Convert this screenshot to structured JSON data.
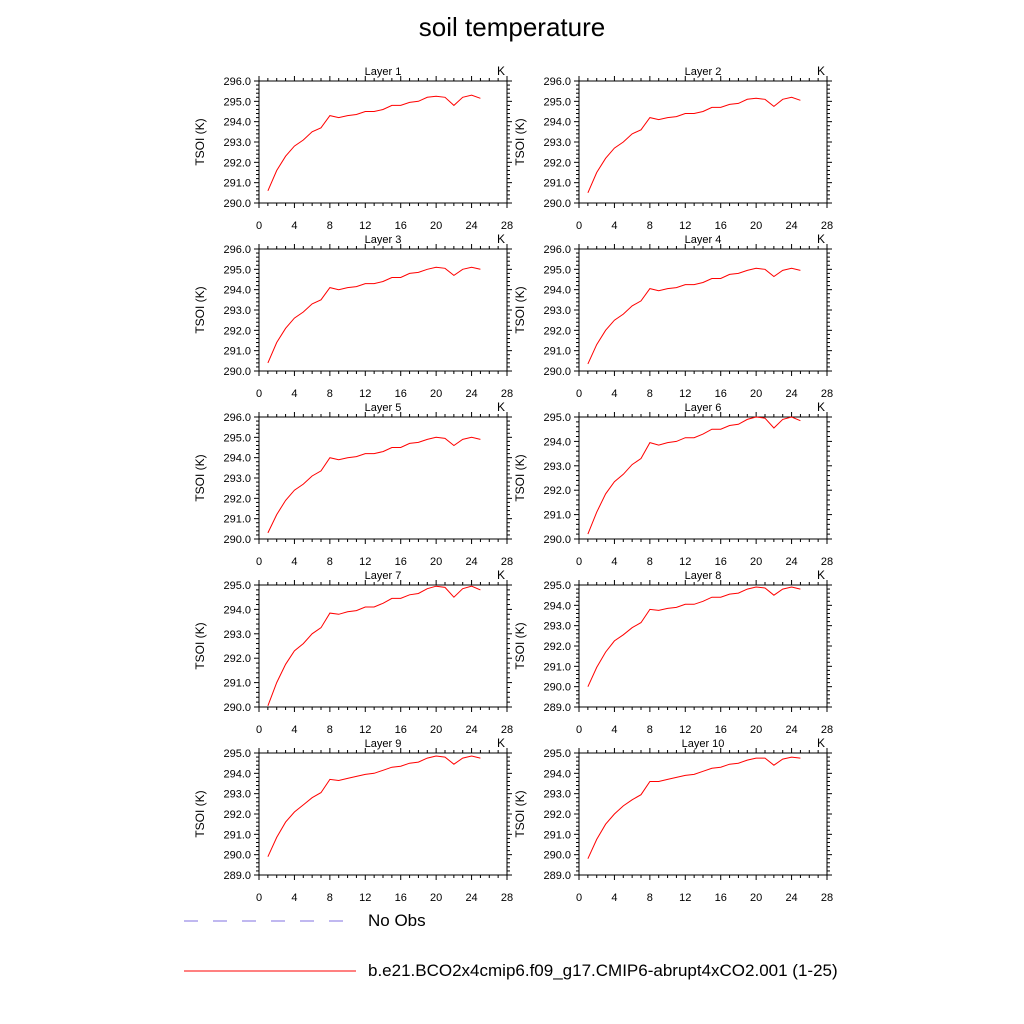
{
  "title": "soil temperature",
  "legend": [
    {
      "label": "No Obs",
      "style": "dashed",
      "color": "#9a8ee6"
    },
    {
      "label": "b.e21.BCO2x4cmip6.f09_g17.CMIP6-abrupt4xCO2.001 (1-25)",
      "style": "solid",
      "color": "#ff0000"
    }
  ],
  "colors": {
    "series": "#ff0000",
    "axis": "#000000"
  },
  "chart_data": [
    {
      "type": "line",
      "title": "Layer 1",
      "unit_label": "K",
      "ylabel": "TSOI  (K)",
      "xlim": [
        0,
        28
      ],
      "xticks": [
        0,
        4,
        8,
        12,
        16,
        20,
        24,
        28
      ],
      "ylim": [
        290,
        296
      ],
      "yticks": [
        "290.0",
        "291.0",
        "292.0",
        "293.0",
        "294.0",
        "295.0",
        "296.0"
      ],
      "series": [
        {
          "name": "b.e21.BCO2x4cmip6.f09_g17.CMIP6-abrupt4xCO2.001 (1-25)",
          "x": [
            1,
            2,
            3,
            4,
            5,
            6,
            7,
            8,
            9,
            10,
            11,
            12,
            13,
            14,
            15,
            16,
            17,
            18,
            19,
            20,
            21,
            22,
            23,
            24,
            25
          ],
          "y": [
            290.6,
            291.6,
            292.3,
            292.8,
            293.1,
            293.5,
            293.7,
            294.3,
            294.2,
            294.3,
            294.35,
            294.5,
            294.5,
            294.6,
            294.8,
            294.8,
            294.95,
            295.0,
            295.2,
            295.25,
            295.2,
            294.8,
            295.2,
            295.3,
            295.15
          ]
        }
      ]
    },
    {
      "type": "line",
      "title": "Layer 2",
      "unit_label": "K",
      "ylabel": "TSOI  (K)",
      "xlim": [
        0,
        28
      ],
      "xticks": [
        0,
        4,
        8,
        12,
        16,
        20,
        24,
        28
      ],
      "ylim": [
        290,
        296
      ],
      "yticks": [
        "290.0",
        "291.0",
        "292.0",
        "293.0",
        "294.0",
        "295.0",
        "296.0"
      ],
      "series": [
        {
          "name": "b.e21.BCO2x4cmip6.f09_g17.CMIP6-abrupt4xCO2.001 (1-25)",
          "x": [
            1,
            2,
            3,
            4,
            5,
            6,
            7,
            8,
            9,
            10,
            11,
            12,
            13,
            14,
            15,
            16,
            17,
            18,
            19,
            20,
            21,
            22,
            23,
            24,
            25
          ],
          "y": [
            290.5,
            291.5,
            292.2,
            292.7,
            293.0,
            293.4,
            293.6,
            294.2,
            294.1,
            294.2,
            294.25,
            294.4,
            294.4,
            294.5,
            294.7,
            294.7,
            294.85,
            294.9,
            295.1,
            295.15,
            295.1,
            294.75,
            295.1,
            295.2,
            295.05
          ]
        }
      ]
    },
    {
      "type": "line",
      "title": "Layer 3",
      "unit_label": "K",
      "ylabel": "TSOI  (K)",
      "xlim": [
        0,
        28
      ],
      "xticks": [
        0,
        4,
        8,
        12,
        16,
        20,
        24,
        28
      ],
      "ylim": [
        290,
        296
      ],
      "yticks": [
        "290.0",
        "291.0",
        "292.0",
        "293.0",
        "294.0",
        "295.0",
        "296.0"
      ],
      "series": [
        {
          "name": "b.e21.BCO2x4cmip6.f09_g17.CMIP6-abrupt4xCO2.001 (1-25)",
          "x": [
            1,
            2,
            3,
            4,
            5,
            6,
            7,
            8,
            9,
            10,
            11,
            12,
            13,
            14,
            15,
            16,
            17,
            18,
            19,
            20,
            21,
            22,
            23,
            24,
            25
          ],
          "y": [
            290.4,
            291.4,
            292.1,
            292.6,
            292.9,
            293.3,
            293.5,
            294.1,
            294.0,
            294.1,
            294.15,
            294.3,
            294.3,
            294.4,
            294.6,
            294.6,
            294.8,
            294.85,
            295.0,
            295.1,
            295.05,
            294.7,
            295.0,
            295.1,
            295.0
          ]
        }
      ]
    },
    {
      "type": "line",
      "title": "Layer 4",
      "unit_label": "K",
      "ylabel": "TSOI  (K)",
      "xlim": [
        0,
        28
      ],
      "xticks": [
        0,
        4,
        8,
        12,
        16,
        20,
        24,
        28
      ],
      "ylim": [
        290,
        296
      ],
      "yticks": [
        "290.0",
        "291.0",
        "292.0",
        "293.0",
        "294.0",
        "295.0",
        "296.0"
      ],
      "series": [
        {
          "name": "b.e21.BCO2x4cmip6.f09_g17.CMIP6-abrupt4xCO2.001 (1-25)",
          "x": [
            1,
            2,
            3,
            4,
            5,
            6,
            7,
            8,
            9,
            10,
            11,
            12,
            13,
            14,
            15,
            16,
            17,
            18,
            19,
            20,
            21,
            22,
            23,
            24,
            25
          ],
          "y": [
            290.35,
            291.3,
            292.0,
            292.5,
            292.8,
            293.2,
            293.45,
            294.05,
            293.95,
            294.05,
            294.1,
            294.25,
            294.25,
            294.35,
            294.55,
            294.55,
            294.75,
            294.8,
            294.95,
            295.05,
            295.0,
            294.65,
            294.95,
            295.05,
            294.95
          ]
        }
      ]
    },
    {
      "type": "line",
      "title": "Layer 5",
      "unit_label": "K",
      "ylabel": "TSOI  (K)",
      "xlim": [
        0,
        28
      ],
      "xticks": [
        0,
        4,
        8,
        12,
        16,
        20,
        24,
        28
      ],
      "ylim": [
        290,
        296
      ],
      "yticks": [
        "290.0",
        "291.0",
        "292.0",
        "293.0",
        "294.0",
        "295.0",
        "296.0"
      ],
      "series": [
        {
          "name": "b.e21.BCO2x4cmip6.f09_g17.CMIP6-abrupt4xCO2.001 (1-25)",
          "x": [
            1,
            2,
            3,
            4,
            5,
            6,
            7,
            8,
            9,
            10,
            11,
            12,
            13,
            14,
            15,
            16,
            17,
            18,
            19,
            20,
            21,
            22,
            23,
            24,
            25
          ],
          "y": [
            290.3,
            291.2,
            291.9,
            292.4,
            292.7,
            293.1,
            293.35,
            294.0,
            293.9,
            294.0,
            294.05,
            294.2,
            294.2,
            294.3,
            294.5,
            294.5,
            294.7,
            294.75,
            294.9,
            295.0,
            294.95,
            294.6,
            294.9,
            295.0,
            294.9
          ]
        }
      ]
    },
    {
      "type": "line",
      "title": "Layer 6",
      "unit_label": "K",
      "ylabel": "TSOI  (K)",
      "xlim": [
        0,
        28
      ],
      "xticks": [
        0,
        4,
        8,
        12,
        16,
        20,
        24,
        28
      ],
      "ylim": [
        290,
        295
      ],
      "yticks": [
        "290.0",
        "291.0",
        "292.0",
        "293.0",
        "294.0",
        "295.0"
      ],
      "series": [
        {
          "name": "b.e21.BCO2x4cmip6.f09_g17.CMIP6-abrupt4xCO2.001 (1-25)",
          "x": [
            1,
            2,
            3,
            4,
            5,
            6,
            7,
            8,
            9,
            10,
            11,
            12,
            13,
            14,
            15,
            16,
            17,
            18,
            19,
            20,
            21,
            22,
            23,
            24,
            25
          ],
          "y": [
            290.2,
            291.1,
            291.85,
            292.35,
            292.65,
            293.05,
            293.3,
            293.95,
            293.85,
            293.95,
            294.0,
            294.15,
            294.15,
            294.3,
            294.5,
            294.5,
            294.65,
            294.7,
            294.9,
            295.0,
            294.95,
            294.55,
            294.9,
            295.0,
            294.85
          ]
        }
      ]
    },
    {
      "type": "line",
      "title": "Layer 7",
      "unit_label": "K",
      "ylabel": "TSOI  (K)",
      "xlim": [
        0,
        28
      ],
      "xticks": [
        0,
        4,
        8,
        12,
        16,
        20,
        24,
        28
      ],
      "ylim": [
        290,
        295
      ],
      "yticks": [
        "290.0",
        "291.0",
        "292.0",
        "293.0",
        "294.0",
        "295.0"
      ],
      "series": [
        {
          "name": "b.e21.BCO2x4cmip6.f09_g17.CMIP6-abrupt4xCO2.001 (1-25)",
          "x": [
            1,
            2,
            3,
            4,
            5,
            6,
            7,
            8,
            9,
            10,
            11,
            12,
            13,
            14,
            15,
            16,
            17,
            18,
            19,
            20,
            21,
            22,
            23,
            24,
            25
          ],
          "y": [
            290.05,
            291.0,
            291.75,
            292.3,
            292.6,
            293.0,
            293.25,
            293.85,
            293.8,
            293.9,
            293.95,
            294.1,
            294.1,
            294.25,
            294.45,
            294.45,
            294.6,
            294.65,
            294.85,
            294.95,
            294.9,
            294.5,
            294.85,
            294.95,
            294.8
          ]
        }
      ]
    },
    {
      "type": "line",
      "title": "Layer 8",
      "unit_label": "K",
      "ylabel": "TSOI  (K)",
      "xlim": [
        0,
        28
      ],
      "xticks": [
        0,
        4,
        8,
        12,
        16,
        20,
        24,
        28
      ],
      "ylim": [
        289,
        295
      ],
      "yticks": [
        "289.0",
        "290.0",
        "291.0",
        "292.0",
        "293.0",
        "294.0",
        "295.0"
      ],
      "series": [
        {
          "name": "b.e21.BCO2x4cmip6.f09_g17.CMIP6-abrupt4xCO2.001 (1-25)",
          "x": [
            1,
            2,
            3,
            4,
            5,
            6,
            7,
            8,
            9,
            10,
            11,
            12,
            13,
            14,
            15,
            16,
            17,
            18,
            19,
            20,
            21,
            22,
            23,
            24,
            25
          ],
          "y": [
            290.0,
            290.95,
            291.7,
            292.25,
            292.55,
            292.9,
            293.15,
            293.8,
            293.75,
            293.85,
            293.9,
            294.05,
            294.05,
            294.2,
            294.4,
            294.4,
            294.55,
            294.6,
            294.8,
            294.9,
            294.85,
            294.5,
            294.8,
            294.9,
            294.8
          ]
        }
      ]
    },
    {
      "type": "line",
      "title": "Layer 9",
      "unit_label": "K",
      "ylabel": "TSOI  (K)",
      "xlim": [
        0,
        28
      ],
      "xticks": [
        0,
        4,
        8,
        12,
        16,
        20,
        24,
        28
      ],
      "ylim": [
        289,
        295
      ],
      "yticks": [
        "289.0",
        "290.0",
        "291.0",
        "292.0",
        "293.0",
        "294.0",
        "295.0"
      ],
      "series": [
        {
          "name": "b.e21.BCO2x4cmip6.f09_g17.CMIP6-abrupt4xCO2.001 (1-25)",
          "x": [
            1,
            2,
            3,
            4,
            5,
            6,
            7,
            8,
            9,
            10,
            11,
            12,
            13,
            14,
            15,
            16,
            17,
            18,
            19,
            20,
            21,
            22,
            23,
            24,
            25
          ],
          "y": [
            289.9,
            290.85,
            291.6,
            292.1,
            292.45,
            292.8,
            293.05,
            293.7,
            293.65,
            293.75,
            293.85,
            293.95,
            294.0,
            294.15,
            294.3,
            294.35,
            294.5,
            294.55,
            294.75,
            294.85,
            294.8,
            294.45,
            294.75,
            294.85,
            294.75
          ]
        }
      ]
    },
    {
      "type": "line",
      "title": "Layer 10",
      "unit_label": "K",
      "ylabel": "TSOI  (K)",
      "xlim": [
        0,
        28
      ],
      "xticks": [
        0,
        4,
        8,
        12,
        16,
        20,
        24,
        28
      ],
      "ylim": [
        289,
        295
      ],
      "yticks": [
        "289.0",
        "290.0",
        "291.0",
        "292.0",
        "293.0",
        "294.0",
        "295.0"
      ],
      "series": [
        {
          "name": "b.e21.BCO2x4cmip6.f09_g17.CMIP6-abrupt4xCO2.001 (1-25)",
          "x": [
            1,
            2,
            3,
            4,
            5,
            6,
            7,
            8,
            9,
            10,
            11,
            12,
            13,
            14,
            15,
            16,
            17,
            18,
            19,
            20,
            21,
            22,
            23,
            24,
            25
          ],
          "y": [
            289.8,
            290.75,
            291.5,
            292.0,
            292.4,
            292.7,
            292.95,
            293.6,
            293.6,
            293.7,
            293.8,
            293.9,
            293.95,
            294.1,
            294.25,
            294.3,
            294.45,
            294.5,
            294.65,
            294.75,
            294.75,
            294.4,
            294.7,
            294.8,
            294.75
          ]
        }
      ]
    }
  ]
}
